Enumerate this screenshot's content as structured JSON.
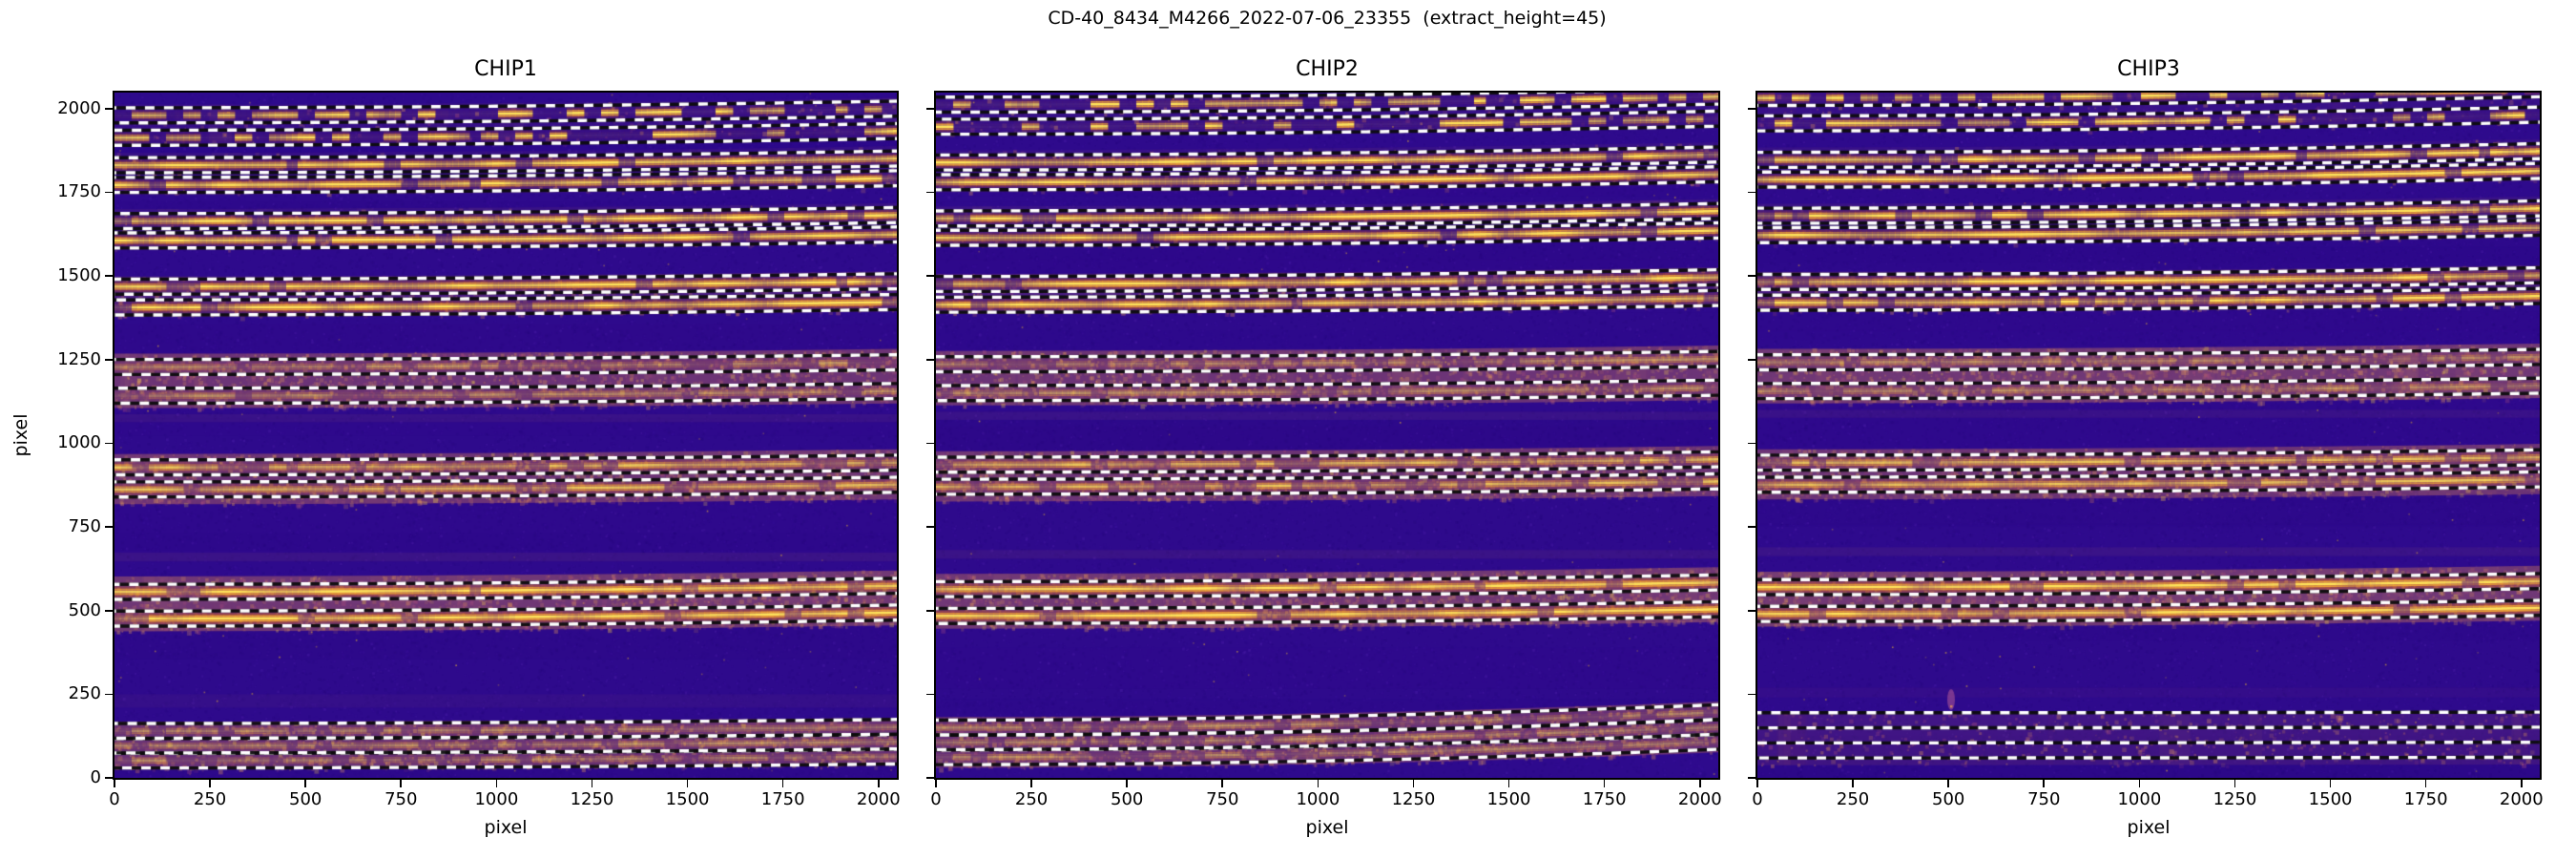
{
  "chart_data": {
    "type": "heatmap",
    "suptitle": "CD-40_8434_M4266_2022-07-06_23355  (extract_height=45)",
    "extract_height": 45,
    "extraction_half_height": 22.5,
    "xlabel": "pixel",
    "ylabel": "pixel",
    "xlim": [
      0,
      2048
    ],
    "ylim": [
      0,
      2048
    ],
    "xticks": [
      0,
      250,
      500,
      750,
      1000,
      1250,
      1500,
      1750,
      2000
    ],
    "yticks": [
      0,
      250,
      500,
      750,
      1000,
      1250,
      1500,
      1750,
      2000
    ],
    "grid": false,
    "legend": "none",
    "colors": {
      "figure_bg": "#ffffff",
      "axis": "#000000",
      "detector_bg": "#2e0a8c",
      "detector_bg_dark": "#1e0470",
      "detector_bg_light": "#4619ab",
      "detector_bg_bright": "#7b3fd6",
      "hot_speck": "#d4a43c",
      "band": "#c2705c",
      "band_speckle_orange": "#e39a5a",
      "band_speckle_pink": "#ad4f7d",
      "band_speckle_yellow": "#ecc84e",
      "trace": "#fbb034",
      "trace_core": "#ffe25a",
      "trace_glow": "#c05020",
      "dash_white": "#ffffff",
      "dash_black": "#0d0d0d",
      "artifact": "#d06a9a"
    },
    "panels": [
      {
        "title": "CHIP1",
        "show_ytick_labels": true,
        "seed": 101,
        "ghosts": [
          {
            "y": 660,
            "h": 26,
            "alpha": 0.09
          },
          {
            "y": 1075,
            "h": 24,
            "alpha": 0.08
          },
          {
            "y": 230,
            "h": 40,
            "alpha": 0.05
          }
        ],
        "clusters": [
          {
            "band": [
              1890,
              2012
            ],
            "band_alpha": 0.13,
            "slope": 20,
            "orders": [
              {
                "y": 1980,
                "style": "broken"
              },
              {
                "y": 1913,
                "style": "broken"
              }
            ]
          },
          {
            "band": [
              1742,
              1868
            ],
            "band_alpha": 0.15,
            "slope": 20,
            "orders": [
              {
                "y": 1831,
                "style": "bright"
              },
              {
                "y": 1772,
                "style": "bright"
              }
            ]
          },
          {
            "band": [
              1578,
              1700
            ],
            "band_alpha": 0.18,
            "slope": 18,
            "orders": [
              {
                "y": 1664,
                "style": "bright"
              },
              {
                "y": 1606,
                "style": "bright"
              }
            ]
          },
          {
            "band": [
              1378,
              1498
            ],
            "band_alpha": 0.38,
            "slope": 16,
            "orders": [
              {
                "y": 1468,
                "style": "bright"
              },
              {
                "y": 1406,
                "style": "bright"
              }
            ]
          },
          {
            "band": [
              1105,
              1268
            ],
            "band_alpha": 0.85,
            "slope": 14,
            "orders": [
              {
                "y": 1228,
                "style": "faint"
              },
              {
                "y": 1142,
                "style": "faint"
              }
            ]
          },
          {
            "band": [
              818,
              968
            ],
            "band_alpha": 0.85,
            "slope": 14,
            "orders": [
              {
                "y": 928,
                "style": "medium"
              },
              {
                "y": 862,
                "style": "medium"
              }
            ]
          },
          {
            "band": [
              438,
              602
            ],
            "band_alpha": 0.9,
            "slope": 18,
            "orders": [
              {
                "y": 556,
                "style": "bright"
              },
              {
                "y": 476,
                "style": "bright"
              }
            ]
          },
          {
            "band": [
              25,
              168
            ],
            "band_alpha": 0.78,
            "slope": 12,
            "orders": [
              {
                "y": 140,
                "style": "faint"
              },
              {
                "y": 96,
                "style": "faint"
              },
              {
                "y": 52,
                "style": "faint"
              }
            ]
          }
        ]
      },
      {
        "title": "CHIP2",
        "show_ytick_labels": false,
        "seed": 202,
        "ghosts": [
          {
            "y": 668,
            "h": 26,
            "alpha": 0.09
          },
          {
            "y": 1082,
            "h": 24,
            "alpha": 0.08
          }
        ],
        "clusters": [
          {
            "band": [
              1922,
              2040
            ],
            "band_alpha": 0.13,
            "slope": 24,
            "orders": [
              {
                "y": 2012,
                "style": "broken"
              },
              {
                "y": 1946,
                "style": "broken"
              }
            ]
          },
          {
            "band": [
              1750,
              1876
            ],
            "band_alpha": 0.15,
            "slope": 24,
            "orders": [
              {
                "y": 1839,
                "style": "bright"
              },
              {
                "y": 1780,
                "style": "bright"
              }
            ]
          },
          {
            "band": [
              1586,
              1708
            ],
            "band_alpha": 0.18,
            "slope": 22,
            "orders": [
              {
                "y": 1672,
                "style": "bright"
              },
              {
                "y": 1614,
                "style": "bright"
              }
            ]
          },
          {
            "band": [
              1386,
              1506
            ],
            "band_alpha": 0.38,
            "slope": 20,
            "orders": [
              {
                "y": 1476,
                "style": "bright"
              },
              {
                "y": 1414,
                "style": "bright"
              }
            ]
          },
          {
            "band": [
              1113,
              1276
            ],
            "band_alpha": 0.85,
            "slope": 16,
            "orders": [
              {
                "y": 1236,
                "style": "faint"
              },
              {
                "y": 1150,
                "style": "faint"
              }
            ]
          },
          {
            "band": [
              826,
              976
            ],
            "band_alpha": 0.85,
            "slope": 16,
            "orders": [
              {
                "y": 936,
                "style": "medium"
              },
              {
                "y": 870,
                "style": "medium"
              }
            ]
          },
          {
            "band": [
              446,
              610
            ],
            "band_alpha": 0.9,
            "slope": 20,
            "orders": [
              {
                "y": 564,
                "style": "bright"
              },
              {
                "y": 484,
                "style": "bright"
              }
            ]
          },
          {
            "band": [
              30,
              182
            ],
            "band_alpha": 0.78,
            "slope": 46,
            "orders": [
              {
                "y": 150,
                "style": "faint"
              },
              {
                "y": 106,
                "style": "faint"
              },
              {
                "y": 62,
                "style": "faint"
              }
            ]
          }
        ]
      },
      {
        "title": "CHIP3",
        "show_ytick_labels": false,
        "seed": 303,
        "artifact": {
          "x": 507,
          "y": 234
        },
        "ghosts": [
          {
            "y": 676,
            "h": 26,
            "alpha": 0.09
          },
          {
            "y": 1088,
            "h": 24,
            "alpha": 0.08
          },
          {
            "y": 255,
            "h": 30,
            "alpha": 0.04
          }
        ],
        "clusters": [
          {
            "band": [
              1930,
              2048
            ],
            "band_alpha": 0.13,
            "slope": 26,
            "orders": [
              {
                "y": 2032,
                "style": "broken"
              },
              {
                "y": 1956,
                "style": "broken"
              }
            ]
          },
          {
            "band": [
              1758,
              1884
            ],
            "band_alpha": 0.15,
            "slope": 26,
            "orders": [
              {
                "y": 1847,
                "style": "bright"
              },
              {
                "y": 1788,
                "style": "bright"
              }
            ]
          },
          {
            "band": [
              1594,
              1716
            ],
            "band_alpha": 0.18,
            "slope": 22,
            "orders": [
              {
                "y": 1680,
                "style": "bright"
              },
              {
                "y": 1622,
                "style": "bright"
              }
            ]
          },
          {
            "band": [
              1392,
              1512
            ],
            "band_alpha": 0.38,
            "slope": 20,
            "orders": [
              {
                "y": 1482,
                "style": "bright"
              },
              {
                "y": 1420,
                "style": "bright"
              }
            ]
          },
          {
            "band": [
              1119,
              1282
            ],
            "band_alpha": 0.9,
            "slope": 16,
            "orders": [
              {
                "y": 1242,
                "style": "faint"
              },
              {
                "y": 1156,
                "style": "faint"
              }
            ]
          },
          {
            "band": [
              832,
              982
            ],
            "band_alpha": 0.85,
            "slope": 16,
            "orders": [
              {
                "y": 942,
                "style": "medium"
              },
              {
                "y": 876,
                "style": "medium"
              }
            ]
          },
          {
            "band": [
              452,
              616
            ],
            "band_alpha": 0.9,
            "slope": 18,
            "orders": [
              {
                "y": 570,
                "style": "bright"
              },
              {
                "y": 490,
                "style": "bright"
              }
            ]
          },
          {
            "band": [
              38,
              198
            ],
            "band_alpha": 0.26,
            "slope": 2,
            "orders": [
              {
                "y": 172,
                "style": "none"
              },
              {
                "y": 82,
                "style": "none"
              }
            ]
          }
        ]
      }
    ]
  }
}
